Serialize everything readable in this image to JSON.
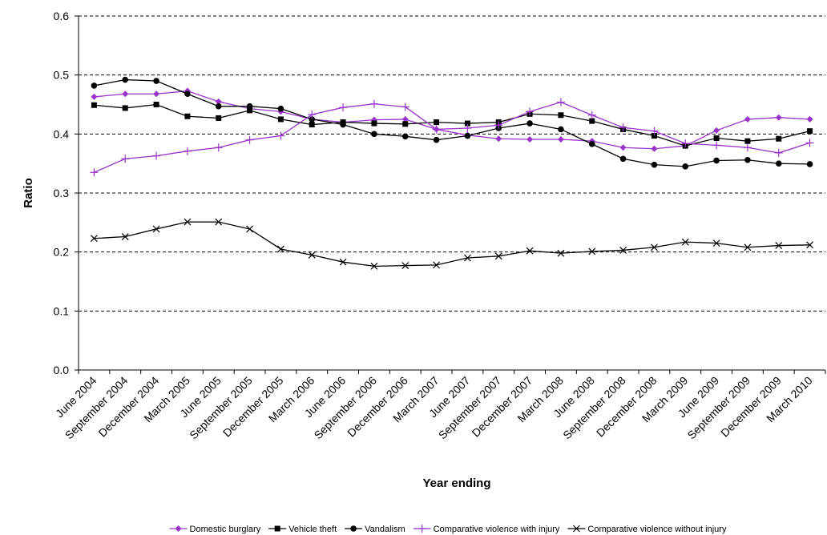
{
  "chart_data": {
    "type": "line",
    "x_label": "Year ending",
    "y_label": "Ratio",
    "categories": [
      "June 2004",
      "September 2004",
      "December 2004",
      "March 2005",
      "June 2005",
      "September 2005",
      "December 2005",
      "March 2006",
      "June 2006",
      "September 2006",
      "December 2006",
      "March 2007",
      "June 2007",
      "September 2007",
      "December 2007",
      "March 2008",
      "June 2008",
      "September 2008",
      "December 2008",
      "March 2009",
      "June 2009",
      "September 2009",
      "December 2009",
      "March 2010"
    ],
    "series": [
      {
        "name": "Domestic burglary",
        "color": "#9933CC",
        "marker": "diamond",
        "values": [
          0.463,
          0.468,
          0.468,
          0.473,
          0.455,
          0.443,
          0.438,
          0.425,
          0.42,
          0.424,
          0.425,
          0.408,
          0.398,
          0.392,
          0.391,
          0.391,
          0.388,
          0.377,
          0.375,
          0.38,
          0.406,
          0.425,
          0.428,
          0.425
        ]
      },
      {
        "name": "Vehicle theft",
        "color": "#000000",
        "marker": "square",
        "values": [
          0.449,
          0.444,
          0.45,
          0.43,
          0.427,
          0.44,
          0.425,
          0.416,
          0.42,
          0.418,
          0.417,
          0.42,
          0.418,
          0.42,
          0.434,
          0.432,
          0.422,
          0.408,
          0.397,
          0.38,
          0.393,
          0.388,
          0.392,
          0.405
        ]
      },
      {
        "name": "Vandalism",
        "color": "#000000",
        "marker": "circle",
        "values": [
          0.482,
          0.492,
          0.49,
          0.468,
          0.447,
          0.447,
          0.443,
          0.425,
          0.416,
          0.4,
          0.396,
          0.39,
          0.397,
          0.41,
          0.418,
          0.408,
          0.383,
          0.358,
          0.348,
          0.345,
          0.355,
          0.356,
          0.35,
          0.349
        ]
      },
      {
        "name": "Comparative violence with injury",
        "color": "#9933CC",
        "marker": "plus",
        "values": [
          0.335,
          0.358,
          0.363,
          0.371,
          0.377,
          0.39,
          0.397,
          0.433,
          0.445,
          0.451,
          0.446,
          0.408,
          0.41,
          0.415,
          0.438,
          0.454,
          0.432,
          0.411,
          0.405,
          0.384,
          0.381,
          0.377,
          0.368,
          0.385
        ]
      },
      {
        "name": "Comparative violence without injury",
        "color": "#000000",
        "marker": "cross",
        "values": [
          0.223,
          0.226,
          0.239,
          0.251,
          0.251,
          0.239,
          0.205,
          0.195,
          0.183,
          0.176,
          0.177,
          0.178,
          0.19,
          0.193,
          0.202,
          0.198,
          0.201,
          0.203,
          0.208,
          0.217,
          0.215,
          0.208,
          0.211,
          0.212
        ]
      }
    ],
    "ylim": [
      0,
      0.6
    ],
    "yticks": [
      {
        "value": 0,
        "label": "0.0"
      },
      0.1,
      0.2,
      0.3,
      0.4,
      0.5,
      0.6
    ],
    "grid": true,
    "legend": "bottom"
  }
}
